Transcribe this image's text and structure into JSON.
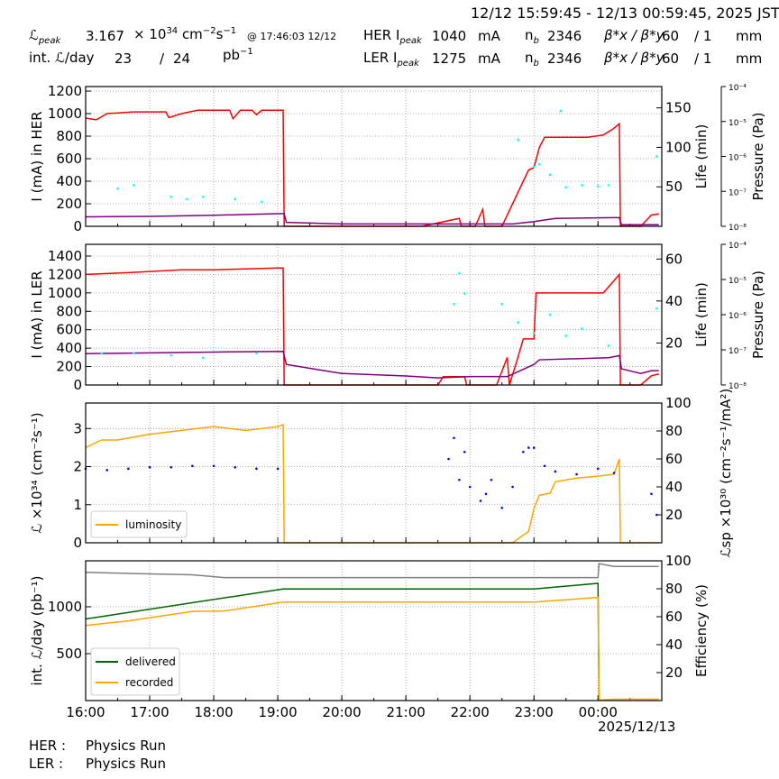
{
  "header": {
    "time_range": "12/12 15:59:45 - 12/13 00:59:45, 2025 JST",
    "lpeak_label": "ℒ",
    "lpeak_sub": "peak",
    "lpeak_value": "3.167",
    "lpeak_unit": "× 10",
    "lpeak_exp": "34",
    "lpeak_unit2": " cm",
    "lpeak_e2": "−2",
    "lpeak_s": "s",
    "lpeak_e3": "−1",
    "lpeak_time": "@ 17:46:03 12/12",
    "intl_label": "int. ℒ/day",
    "intl_delivered": "23",
    "intl_sep": "/",
    "intl_recorded": "24",
    "intl_unit": "pb",
    "intl_exp": "−1",
    "her": {
      "label": "HER I",
      "sub": "peak",
      "current": "1040",
      "unit": "mA",
      "nb_label": "n",
      "nb_sub": "b",
      "nb": "2346",
      "beta_label": "β*x / β*y",
      "beta_x": "60",
      "beta_y": "/ 1",
      "beta_unit": "mm"
    },
    "ler": {
      "label": "LER I",
      "sub": "peak",
      "current": "1275",
      "unit": "mA",
      "nb_label": "n",
      "nb_sub": "b",
      "nb": "2346",
      "beta_label": "β*x / β*y",
      "beta_x": "60",
      "beta_y": "/ 1",
      "beta_unit": "mm"
    }
  },
  "footer": {
    "her_label": "HER :",
    "her_status": "Physics Run",
    "ler_label": "LER :",
    "ler_status": "Physics Run",
    "date_label": "2025/12/13"
  },
  "colors": {
    "current": "#ff0000",
    "life": "#800080",
    "pressure": "#00ffff",
    "luminosity": "#ffa500",
    "specific": "#0000ff",
    "delivered": "#006400",
    "recorded": "#ffa500",
    "efficiency": "#808080"
  },
  "chart_data": [
    {
      "type": "line",
      "panel": "her",
      "xlim": [
        "16:00",
        "00:59:45"
      ],
      "xticks": [
        "16:00",
        "17:00",
        "18:00",
        "19:00",
        "20:00",
        "21:00",
        "22:00",
        "23:00",
        "00:00"
      ],
      "ylabel": "I (mA) in HER",
      "ylim": [
        0,
        1240
      ],
      "yticks": [
        0,
        200,
        400,
        600,
        800,
        1000,
        1200
      ],
      "y2label": "Life (min)",
      "y2lim": [
        0,
        177
      ],
      "y2ticks": [
        50,
        100,
        150
      ],
      "y3label": "Pressure (Pa)",
      "y3scale": "log",
      "y3lim": [
        1e-08,
        0.0001
      ],
      "y3ticks": [
        "10⁻⁸",
        "10⁻⁷",
        "10⁻⁶",
        "10⁻⁵",
        "10⁻⁴"
      ],
      "grid": true,
      "series": [
        {
          "key": "current",
          "axis": "y",
          "style": "line",
          "points": [
            [
              "16:00",
              960
            ],
            [
              "16:10",
              945
            ],
            [
              "16:20",
              1000
            ],
            [
              "16:45",
              1015
            ],
            [
              "17:15",
              1015
            ],
            [
              "17:18",
              965
            ],
            [
              "17:30",
              1000
            ],
            [
              "17:45",
              1030
            ],
            [
              "18:15",
              1030
            ],
            [
              "18:18",
              955
            ],
            [
              "18:25",
              1030
            ],
            [
              "18:36",
              1030
            ],
            [
              "18:40",
              990
            ],
            [
              "18:45",
              1030
            ],
            [
              "19:05",
              1030
            ],
            [
              "19:06",
              0
            ],
            [
              "21:15",
              0
            ],
            [
              "21:50",
              70
            ],
            [
              "21:52",
              0
            ],
            [
              "22:05",
              0
            ],
            [
              "22:12",
              150
            ],
            [
              "22:14",
              0
            ],
            [
              "22:30",
              0
            ],
            [
              "22:40",
              200
            ],
            [
              "22:50",
              400
            ],
            [
              "22:55",
              500
            ],
            [
              "23:00",
              520
            ],
            [
              "23:05",
              700
            ],
            [
              "23:10",
              790
            ],
            [
              "23:50",
              790
            ],
            [
              "00:05",
              810
            ],
            [
              "00:15",
              870
            ],
            [
              "00:20",
              910
            ],
            [
              "00:21",
              0
            ],
            [
              "00:40",
              0
            ],
            [
              "00:50",
              100
            ],
            [
              "00:57",
              110
            ]
          ]
        },
        {
          "key": "life",
          "axis": "y2",
          "style": "line",
          "points": [
            [
              "16:00",
              12
            ],
            [
              "17:00",
              12.5
            ],
            [
              "18:00",
              14
            ],
            [
              "19:00",
              16
            ],
            [
              "19:06",
              16
            ],
            [
              "19:08",
              5
            ],
            [
              "20:00",
              3
            ],
            [
              "22:40",
              3
            ],
            [
              "23:00",
              6
            ],
            [
              "23:20",
              10
            ],
            [
              "00:15",
              11
            ],
            [
              "00:20",
              11
            ],
            [
              "00:22",
              2
            ],
            [
              "00:57",
              2
            ]
          ]
        },
        {
          "key": "pressure",
          "axis": "y3",
          "style": "dots",
          "points": [
            [
              "16:30",
              1.2e-07
            ],
            [
              "16:45",
              1.5e-07
            ],
            [
              "17:20",
              7e-08
            ],
            [
              "17:35",
              6e-08
            ],
            [
              "17:50",
              7e-08
            ],
            [
              "18:20",
              6e-08
            ],
            [
              "18:45",
              5e-08
            ],
            [
              "22:45",
              3e-06
            ],
            [
              "23:00",
              5e-07
            ],
            [
              "23:05",
              6e-07
            ],
            [
              "23:15",
              3e-07
            ],
            [
              "23:25",
              2e-05
            ],
            [
              "23:30",
              1.3e-07
            ],
            [
              "23:45",
              1.5e-07
            ],
            [
              "00:00",
              1.4e-07
            ],
            [
              "00:10",
              1.5e-07
            ],
            [
              "00:55",
              1e-06
            ]
          ]
        }
      ]
    },
    {
      "type": "line",
      "panel": "ler",
      "ylabel": "I (mA) in LER",
      "ylim": [
        0,
        1527
      ],
      "yticks": [
        0,
        200,
        400,
        600,
        800,
        1000,
        1200,
        1400
      ],
      "y2label": "Life (min)",
      "y2lim": [
        0,
        67
      ],
      "y2ticks": [
        20,
        40,
        60
      ],
      "y3label": "Pressure (Pa)",
      "y3scale": "log",
      "y3lim": [
        1e-08,
        0.0001
      ],
      "y3ticks": [
        "10⁻⁸",
        "10⁻⁷",
        "10⁻⁶",
        "10⁻⁵",
        "10⁻⁴"
      ],
      "grid": true,
      "series": [
        {
          "key": "current",
          "axis": "y",
          "style": "line",
          "points": [
            [
              "16:00",
              1200
            ],
            [
              "16:40",
              1220
            ],
            [
              "17:30",
              1250
            ],
            [
              "18:00",
              1250
            ],
            [
              "19:00",
              1270
            ],
            [
              "19:05",
              1270
            ],
            [
              "19:06",
              0
            ],
            [
              "21:30",
              0
            ],
            [
              "21:35",
              90
            ],
            [
              "21:55",
              90
            ],
            [
              "21:57",
              0
            ],
            [
              "22:25",
              0
            ],
            [
              "22:35",
              300
            ],
            [
              "22:37",
              0
            ],
            [
              "22:45",
              300
            ],
            [
              "22:50",
              500
            ],
            [
              "23:00",
              500
            ],
            [
              "23:02",
              1000
            ],
            [
              "00:05",
              1000
            ],
            [
              "00:20",
              1200
            ],
            [
              "00:21",
              0
            ],
            [
              "00:40",
              0
            ],
            [
              "00:50",
              100
            ],
            [
              "00:57",
              120
            ]
          ]
        },
        {
          "key": "life",
          "axis": "y2",
          "style": "line",
          "points": [
            [
              "16:00",
              14.9
            ],
            [
              "18:00",
              15.7
            ],
            [
              "19:05",
              16
            ],
            [
              "19:08",
              9.8
            ],
            [
              "20:00",
              5.5
            ],
            [
              "21:00",
              4.3
            ],
            [
              "21:30",
              3.4
            ],
            [
              "22:00",
              4
            ],
            [
              "22:35",
              4
            ],
            [
              "23:00",
              9.8
            ],
            [
              "23:05",
              12
            ],
            [
              "00:10",
              13
            ],
            [
              "00:20",
              14
            ],
            [
              "00:22",
              7.7
            ],
            [
              "00:40",
              5.5
            ],
            [
              "00:50",
              6.8
            ],
            [
              "00:57",
              6.8
            ]
          ]
        },
        {
          "key": "pressure",
          "axis": "y3",
          "style": "dots",
          "points": [
            [
              "16:15",
              8e-08
            ],
            [
              "16:45",
              8e-08
            ],
            [
              "17:20",
              7e-08
            ],
            [
              "17:50",
              6e-08
            ],
            [
              "18:40",
              8e-08
            ],
            [
              "21:45",
              2e-06
            ],
            [
              "21:50",
              1.5e-05
            ],
            [
              "21:55",
              4e-06
            ],
            [
              "22:30",
              2e-06
            ],
            [
              "22:45",
              6e-07
            ],
            [
              "23:00",
              3e-07
            ],
            [
              "23:15",
              1e-06
            ],
            [
              "23:30",
              2.5e-07
            ],
            [
              "23:45",
              4e-07
            ],
            [
              "00:10",
              1.3e-07
            ],
            [
              "00:55",
              1.5e-06
            ]
          ]
        }
      ]
    },
    {
      "type": "line",
      "panel": "luminosity",
      "ylabel": "ℒ ×10³⁴ (cm⁻²s⁻¹)",
      "ylim": [
        0,
        3.67
      ],
      "yticks": [
        0,
        1,
        2,
        3
      ],
      "y2label": "ℒsp ×10³⁰ (cm⁻²s⁻¹/mA²)",
      "y2lim": [
        0,
        100
      ],
      "y2ticks": [
        20,
        40,
        60,
        80,
        100
      ],
      "grid": true,
      "legend": {
        "entries": [
          "luminosity"
        ],
        "placement": "lower-left"
      },
      "series": [
        {
          "key": "luminosity",
          "name": "luminosity",
          "axis": "y",
          "style": "line",
          "points": [
            [
              "16:00",
              2.5
            ],
            [
              "16:15",
              2.7
            ],
            [
              "16:30",
              2.7
            ],
            [
              "17:00",
              2.85
            ],
            [
              "17:30",
              2.95
            ],
            [
              "18:00",
              3.05
            ],
            [
              "18:30",
              2.95
            ],
            [
              "19:00",
              3.05
            ],
            [
              "19:05",
              3.1
            ],
            [
              "19:06",
              0
            ],
            [
              "22:40",
              0
            ],
            [
              "22:55",
              0.3
            ],
            [
              "23:00",
              0.9
            ],
            [
              "23:05",
              1.25
            ],
            [
              "23:15",
              1.3
            ],
            [
              "23:20",
              1.6
            ],
            [
              "23:40",
              1.7
            ],
            [
              "00:00",
              1.75
            ],
            [
              "00:15",
              1.8
            ],
            [
              "00:20",
              2.2
            ],
            [
              "00:21",
              0
            ],
            [
              "00:57",
              0
            ]
          ]
        },
        {
          "key": "specific",
          "axis": "y2",
          "style": "dots",
          "points": [
            [
              "16:00",
              53
            ],
            [
              "16:20",
              52
            ],
            [
              "16:40",
              53
            ],
            [
              "17:00",
              54
            ],
            [
              "17:20",
              54
            ],
            [
              "17:40",
              55
            ],
            [
              "18:00",
              55
            ],
            [
              "18:20",
              54
            ],
            [
              "18:40",
              53
            ],
            [
              "19:00",
              53
            ],
            [
              "21:40",
              60
            ],
            [
              "21:45",
              75
            ],
            [
              "21:50",
              45
            ],
            [
              "21:55",
              65
            ],
            [
              "22:00",
              40
            ],
            [
              "22:10",
              30
            ],
            [
              "22:15",
              35
            ],
            [
              "22:20",
              45
            ],
            [
              "22:30",
              25
            ],
            [
              "22:40",
              40
            ],
            [
              "22:50",
              65
            ],
            [
              "22:55",
              68
            ],
            [
              "23:00",
              68
            ],
            [
              "23:10",
              55
            ],
            [
              "23:20",
              51
            ],
            [
              "23:40",
              49
            ],
            [
              "00:00",
              53
            ],
            [
              "00:15",
              50
            ],
            [
              "00:50",
              35
            ],
            [
              "00:55",
              20
            ]
          ]
        }
      ]
    },
    {
      "type": "line",
      "panel": "integrated",
      "ylabel": "int. ℒ/day (pb⁻¹)",
      "ylim": [
        0,
        1490
      ],
      "yticks": [
        500,
        1000
      ],
      "y2label": "Efficiency (%)",
      "y2lim": [
        0,
        100
      ],
      "y2ticks": [
        20,
        40,
        60,
        80,
        100
      ],
      "grid": true,
      "legend": {
        "entries": [
          "delivered",
          "recorded"
        ],
        "placement": "lower-left"
      },
      "series": [
        {
          "key": "delivered",
          "name": "delivered",
          "axis": "y",
          "style": "line",
          "points": [
            [
              "16:00",
              870
            ],
            [
              "19:05",
              1190
            ],
            [
              "23:00",
              1190
            ],
            [
              "00:00",
              1250
            ],
            [
              "00:01",
              0
            ]
          ]
        },
        {
          "key": "recorded",
          "name": "recorded",
          "axis": "y",
          "style": "line",
          "points": [
            [
              "16:00",
              800
            ],
            [
              "16:40",
              850
            ],
            [
              "17:40",
              950
            ],
            [
              "18:10",
              955
            ],
            [
              "19:05",
              1050
            ],
            [
              "23:00",
              1050
            ],
            [
              "00:00",
              1100
            ],
            [
              "00:01",
              5
            ],
            [
              "00:15",
              15
            ],
            [
              "00:57",
              15
            ]
          ]
        },
        {
          "key": "efficiency",
          "axis": "y2",
          "style": "line",
          "points": [
            [
              "16:00",
              91.8
            ],
            [
              "16:40",
              91
            ],
            [
              "17:40",
              90
            ],
            [
              "18:10",
              88
            ],
            [
              "00:00",
              88
            ],
            [
              "00:01",
              98
            ],
            [
              "00:15",
              96
            ],
            [
              "00:57",
              96
            ]
          ]
        }
      ]
    }
  ]
}
